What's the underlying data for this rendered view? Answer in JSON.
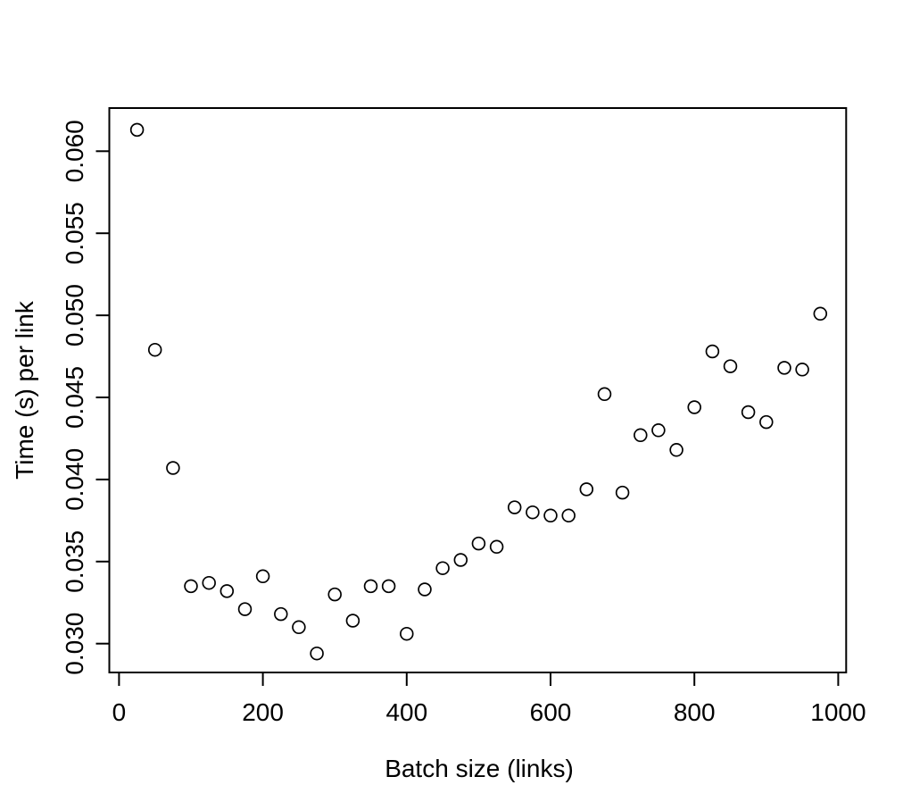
{
  "chart_data": {
    "type": "scatter",
    "title": "",
    "xlabel": "Batch size (links)",
    "ylabel": "Time (s) per link",
    "marker": "open-circle",
    "grid": false,
    "legend": null,
    "xlim": [
      -14,
      1009
    ],
    "ylim": [
      0.0282,
      0.0627
    ],
    "x_ticks": {
      "values": [
        0,
        200,
        400,
        600,
        800,
        1000
      ],
      "labels": [
        "0",
        "200",
        "400",
        "600",
        "800",
        "1000"
      ]
    },
    "y_ticks": {
      "values": [
        0.03,
        0.035,
        0.04,
        0.045,
        0.05,
        0.055,
        0.06
      ],
      "labels": [
        "0.030",
        "0.035",
        "0.040",
        "0.045",
        "0.050",
        "0.055",
        "0.060"
      ]
    },
    "x": [
      25,
      50,
      75,
      100,
      125,
      150,
      175,
      200,
      225,
      250,
      275,
      300,
      325,
      350,
      375,
      400,
      425,
      450,
      475,
      500,
      525,
      550,
      575,
      600,
      625,
      650,
      675,
      700,
      725,
      750,
      775,
      800,
      825,
      850,
      875,
      900,
      925,
      950,
      975
    ],
    "y": [
      0.0613,
      0.0479,
      0.0407,
      0.0335,
      0.0337,
      0.0332,
      0.0321,
      0.0341,
      0.0318,
      0.031,
      0.0294,
      0.033,
      0.0314,
      0.0335,
      0.0335,
      0.0306,
      0.0333,
      0.0346,
      0.0351,
      0.0361,
      0.0359,
      0.0383,
      0.038,
      0.0378,
      0.0378,
      0.0394,
      0.0452,
      0.0392,
      0.0427,
      0.043,
      0.0418,
      0.0444,
      0.0478,
      0.0469,
      0.0441,
      0.0435,
      0.0468,
      0.0467,
      0.0501
    ],
    "colors": {
      "points": "#000000",
      "axis": "#000000",
      "text": "#000000",
      "background": "#ffffff"
    }
  }
}
